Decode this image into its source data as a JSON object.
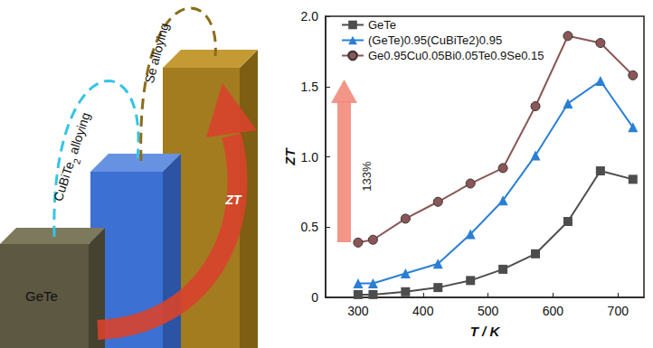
{
  "chart_data": {
    "type": "line",
    "x_label": "T / K",
    "y_label": "ZT",
    "xlim": [
      250,
      740
    ],
    "xticks": [
      300,
      400,
      500,
      600,
      700
    ],
    "ylim": [
      0,
      2
    ],
    "yticks": [
      0,
      0.5,
      {
        "value": 1,
        "label": "1.0"
      },
      1.5,
      {
        "value": 2,
        "label": "2.0"
      }
    ],
    "grid": false,
    "legend": "upper left",
    "annotations": [
      {
        "text": "133%"
      }
    ],
    "x": [
      300,
      323,
      373,
      423,
      473,
      523,
      573,
      623,
      673,
      723
    ],
    "series": [
      {
        "name": "GeTe",
        "color": "#4d4d4d",
        "marker": "square",
        "values": [
          0.02,
          0.02,
          0.04,
          0.07,
          0.12,
          0.2,
          0.31,
          0.54,
          0.9,
          0.84
        ]
      },
      {
        "name": "(GeTe)0.95(CuBiTe2)0.95",
        "color": "#2a7fd4",
        "marker": "triangle",
        "values": [
          0.1,
          0.1,
          0.17,
          0.24,
          0.45,
          0.69,
          1.01,
          1.38,
          1.54,
          1.21
        ]
      },
      {
        "name": "Ge0.95Cu0.05Bi0.05Te0.9Se0.15",
        "color": "#8c5656",
        "marker": "circle",
        "values": [
          0.39,
          0.41,
          0.56,
          0.68,
          0.81,
          0.92,
          1.36,
          1.86,
          1.81,
          1.58
        ]
      }
    ]
  },
  "diagram": {
    "base_label": "GeTe",
    "steps": [
      "CuBiTe2 alloying",
      "Se alloying"
    ],
    "arrow_label": "ZT"
  }
}
